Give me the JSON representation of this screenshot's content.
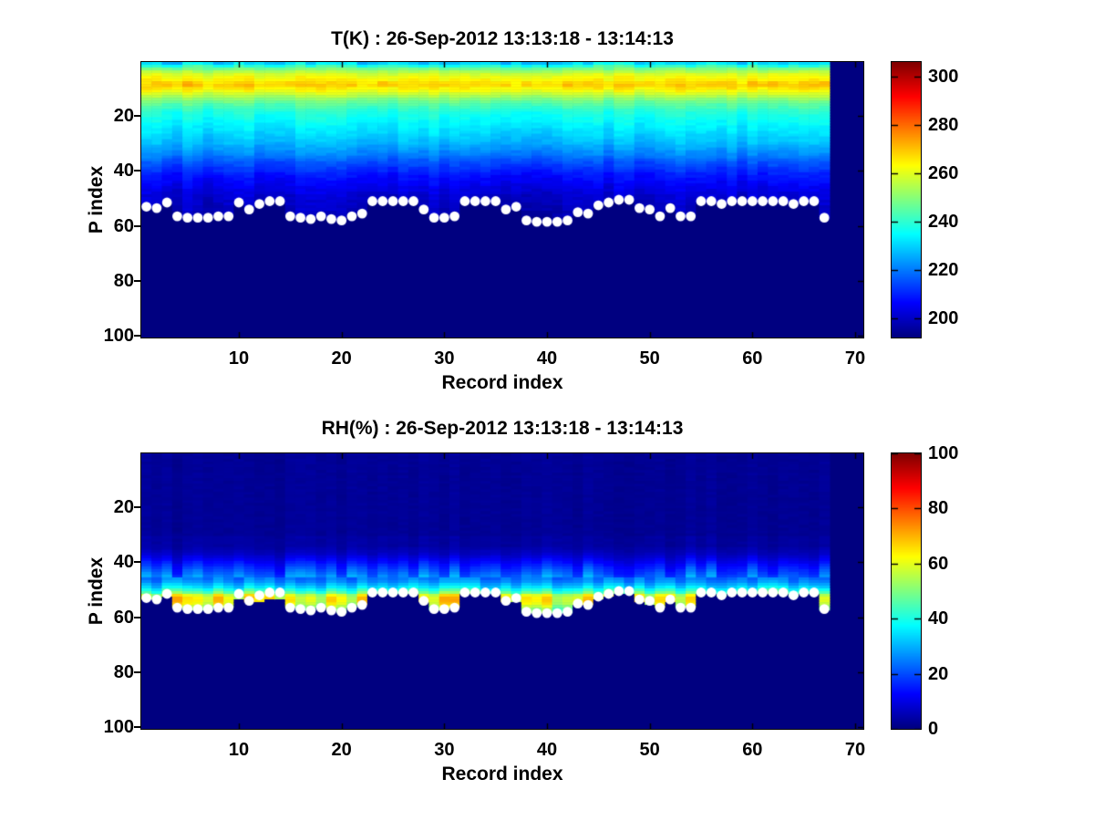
{
  "figure": {
    "background": "#ffffff",
    "text_color": "#000000",
    "marker_color": "#ffffff",
    "axes_box_color": "#000000",
    "colormap": "jet"
  },
  "chart_data": [
    {
      "id": "temperature",
      "type": "heatmap",
      "title": "T(K) : 26-Sep-2012 13:13:18 - 13:14:13",
      "xlabel": "Record index",
      "ylabel": "P index",
      "x_ticks": [
        10,
        20,
        30,
        40,
        50,
        60,
        70
      ],
      "y_ticks": [
        20,
        40,
        60,
        80,
        100
      ],
      "colorbar_ticks": [
        200,
        220,
        240,
        260,
        280,
        300
      ],
      "caxis": [
        192,
        306
      ],
      "x_range": [
        0.5,
        70.8
      ],
      "y_range": [
        0.5,
        100.5
      ],
      "y_direction": "down",
      "n_records": 67,
      "colormap": "jet",
      "legend_position": "colorbar-right",
      "profile_by_p_index": [
        231,
        240,
        248,
        254,
        259,
        262,
        264,
        266,
        267,
        265,
        262,
        258,
        254,
        250,
        247,
        244,
        242,
        240,
        238,
        237,
        236,
        235,
        234,
        233,
        232,
        231,
        230,
        229,
        228,
        227,
        225,
        224,
        222,
        221,
        219,
        217,
        215,
        214,
        212,
        211,
        209,
        208,
        207,
        206,
        205,
        204,
        203,
        202,
        201,
        201,
        200,
        200,
        199,
        199,
        198,
        198,
        197
      ],
      "surface_p_index": [
        53,
        53.5,
        51.5,
        56.5,
        57,
        57,
        57,
        56.5,
        56.5,
        51.5,
        54,
        52,
        51,
        51,
        56.5,
        57,
        57.5,
        56.5,
        57.5,
        58,
        56.5,
        55.5,
        51,
        51,
        51,
        51,
        51,
        54,
        57,
        57,
        56.5,
        51,
        51,
        51,
        51,
        54,
        53,
        58,
        58.5,
        58.5,
        58.5,
        58,
        55,
        55.5,
        52.5,
        51.5,
        50.5,
        50.5,
        53.5,
        54,
        56.5,
        53.5,
        56.5,
        56.5,
        51,
        51,
        52,
        51,
        51,
        51,
        51,
        51,
        51,
        52,
        51,
        51,
        57
      ],
      "below_surface_value": 192,
      "marker": "white-filled-circle"
    },
    {
      "id": "relative-humidity",
      "type": "heatmap",
      "title": "RH(%) : 26-Sep-2012 13:13:18 - 13:14:13",
      "xlabel": "Record index",
      "ylabel": "P index",
      "x_ticks": [
        10,
        20,
        30,
        40,
        50,
        60,
        70
      ],
      "y_ticks": [
        20,
        40,
        60,
        80,
        100
      ],
      "colorbar_ticks": [
        0,
        20,
        40,
        60,
        80,
        100
      ],
      "caxis": [
        0,
        100
      ],
      "x_range": [
        0.5,
        70.8
      ],
      "y_range": [
        0.5,
        100.5
      ],
      "y_direction": "down",
      "n_records": 67,
      "colormap": "jet",
      "legend_position": "colorbar-right",
      "profile_by_p_index": [
        2,
        2,
        2,
        2,
        2,
        2,
        2,
        2,
        2,
        2,
        2,
        2,
        2,
        2,
        2,
        2,
        2,
        2,
        2,
        2,
        2,
        2,
        2,
        2,
        2,
        2,
        2,
        2,
        2,
        2,
        3,
        3,
        3,
        3,
        4,
        5,
        6,
        8,
        10,
        12,
        14,
        16,
        18,
        20,
        22,
        24,
        26,
        30,
        34,
        40,
        46,
        58,
        62,
        62,
        60,
        55,
        50
      ],
      "surface_p_index": [
        53,
        53.5,
        51.5,
        56.5,
        57,
        57,
        57,
        56.5,
        56.5,
        51.5,
        54,
        52,
        51,
        51,
        56.5,
        57,
        57.5,
        56.5,
        57.5,
        58,
        56.5,
        55.5,
        51,
        51,
        51,
        51,
        51,
        54,
        57,
        57,
        56.5,
        51,
        51,
        51,
        51,
        54,
        53,
        58,
        58.5,
        58.5,
        58.5,
        58,
        55,
        55.5,
        52.5,
        51.5,
        50.5,
        50.5,
        53.5,
        54,
        56.5,
        53.5,
        56.5,
        56.5,
        51,
        51,
        52,
        51,
        51,
        51,
        51,
        51,
        51,
        52,
        51,
        51,
        57
      ],
      "moist_bottom_p_index": [
        53.5,
        53.5,
        52,
        56.5,
        57,
        57,
        57,
        56.5,
        56.5,
        53.5,
        54.5,
        54,
        53.5,
        53.5,
        56.5,
        57,
        57.5,
        56.5,
        57.5,
        58,
        56.5,
        55.5,
        51,
        51,
        51,
        51,
        51,
        54.5,
        57,
        57,
        56.5,
        51,
        51,
        51,
        51,
        54.5,
        54,
        58,
        58.5,
        58.5,
        58.5,
        58,
        55,
        55.5,
        53.5,
        52,
        51,
        51,
        54.5,
        55,
        56.5,
        54.5,
        56.5,
        56.5,
        51,
        51,
        52,
        51,
        51,
        51,
        51,
        51,
        51,
        52,
        51,
        51,
        57
      ],
      "below_surface_value": 0,
      "marker": "white-filled-circle"
    }
  ]
}
